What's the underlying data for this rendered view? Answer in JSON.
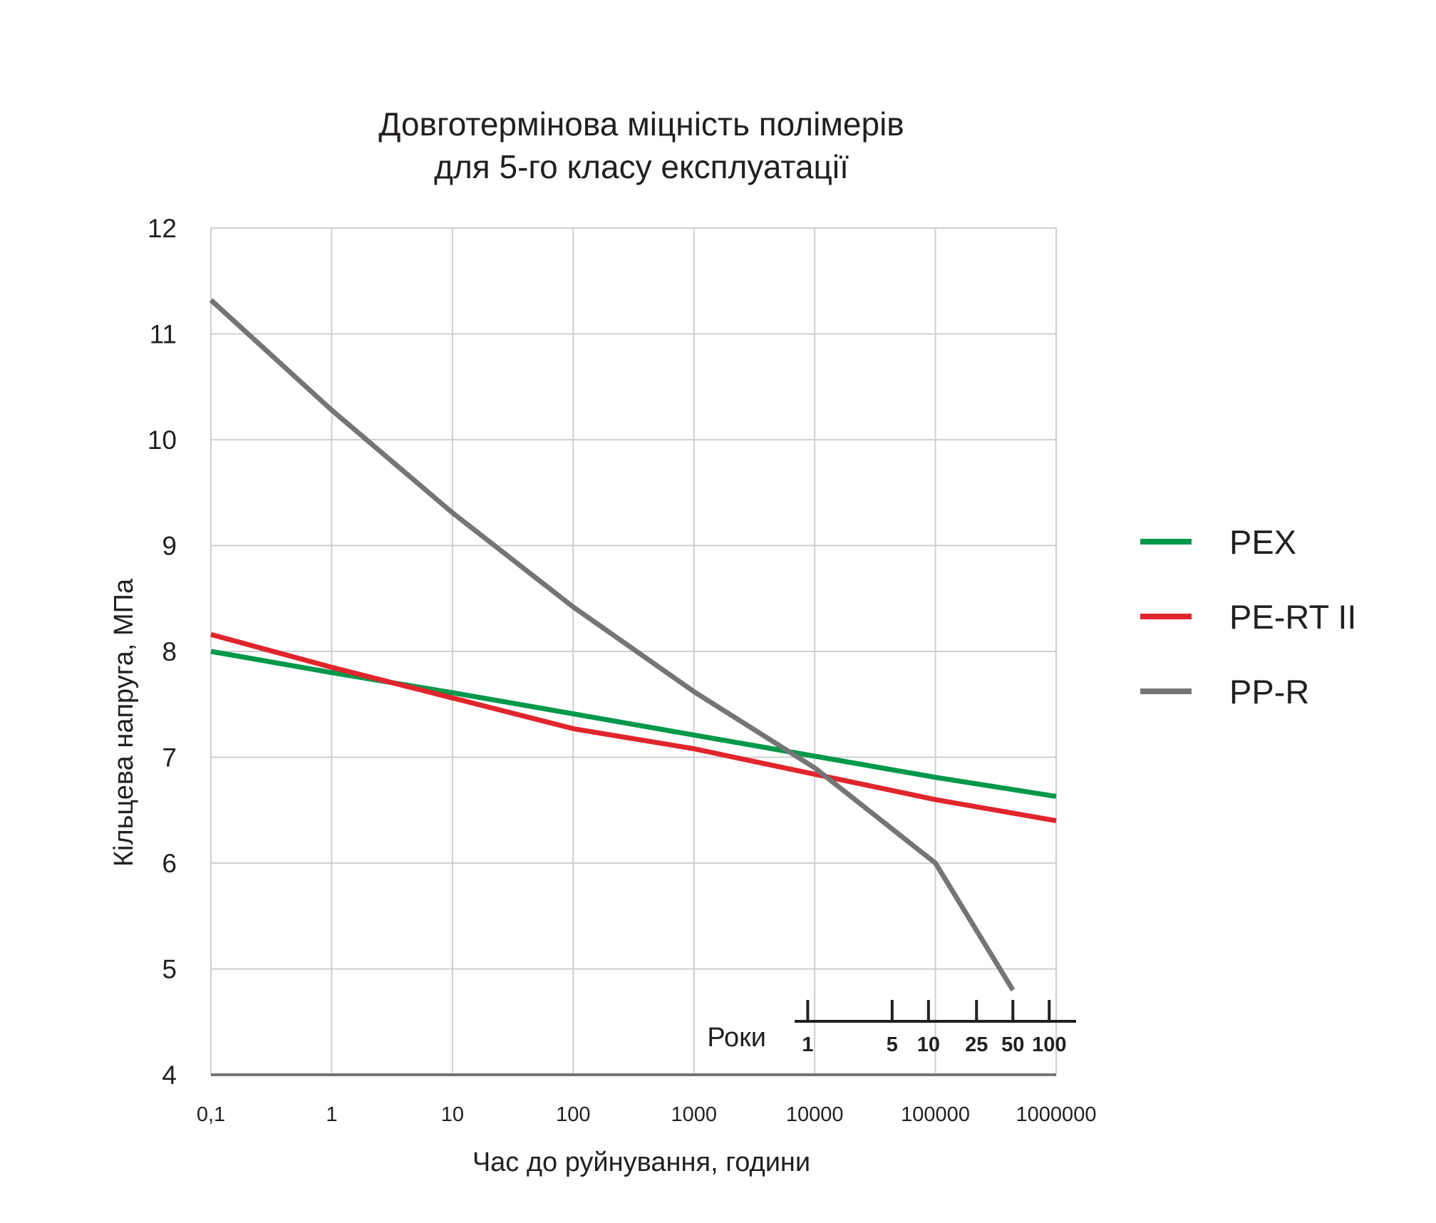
{
  "chart_data": {
    "type": "line",
    "title": [
      "Довготермінова міцність полімерів",
      "для 5-го класу експлуатації"
    ],
    "xlabel": "Час до руйнування, години",
    "ylabel": "Кільцева напруга, МПа",
    "xscale": "log",
    "xlim": [
      0.1,
      1000000
    ],
    "ylim": [
      4,
      12
    ],
    "grid": true,
    "x_ticks": [
      {
        "value": 0.1,
        "label": "0,1"
      },
      {
        "value": 1,
        "label": "1"
      },
      {
        "value": 10,
        "label": "10"
      },
      {
        "value": 100,
        "label": "100"
      },
      {
        "value": 1000,
        "label": "1000"
      },
      {
        "value": 10000,
        "label": "10000"
      },
      {
        "value": 100000,
        "label": "100000"
      },
      {
        "value": 1000000,
        "label": "1000000"
      }
    ],
    "y_ticks": [
      {
        "value": 4,
        "label": "4"
      },
      {
        "value": 5,
        "label": "5"
      },
      {
        "value": 6,
        "label": "6"
      },
      {
        "value": 7,
        "label": "7"
      },
      {
        "value": 8,
        "label": "8"
      },
      {
        "value": 9,
        "label": "9"
      },
      {
        "value": 10,
        "label": "10"
      },
      {
        "value": 11,
        "label": "11"
      },
      {
        "value": 12,
        "label": "12"
      }
    ],
    "series": [
      {
        "name": "PEX",
        "color": "#00984a",
        "points": [
          [
            0.1,
            8.0
          ],
          [
            1,
            7.8
          ],
          [
            10,
            7.61
          ],
          [
            100,
            7.41
          ],
          [
            1000,
            7.21
          ],
          [
            10000,
            7.01
          ],
          [
            100000,
            6.81
          ],
          [
            1000000,
            6.63
          ]
        ]
      },
      {
        "name": "PE-RT II",
        "color": "#e1252c",
        "points": [
          [
            0.1,
            8.16
          ],
          [
            1,
            7.85
          ],
          [
            10,
            7.56
          ],
          [
            100,
            7.27
          ],
          [
            1000,
            7.08
          ],
          [
            10000,
            6.84
          ],
          [
            100000,
            6.6
          ],
          [
            1000000,
            6.4
          ]
        ]
      },
      {
        "name": "PP-R",
        "color": "#757575",
        "points": [
          [
            0.1,
            11.32
          ],
          [
            1,
            10.28
          ],
          [
            10,
            9.31
          ],
          [
            100,
            8.42
          ],
          [
            1000,
            7.62
          ],
          [
            10000,
            6.9
          ],
          [
            100000,
            6.0
          ],
          [
            438000,
            4.8
          ]
        ]
      }
    ],
    "legend_position": "right",
    "years_scale": {
      "label": "Роки",
      "ticks": [
        {
          "value": 8760,
          "label": "1"
        },
        {
          "value": 43800,
          "label": "5"
        },
        {
          "value": 87600,
          "label": "10"
        },
        {
          "value": 219000,
          "label": "25"
        },
        {
          "value": 438000,
          "label": "50"
        },
        {
          "value": 876000,
          "label": "100"
        }
      ]
    }
  }
}
